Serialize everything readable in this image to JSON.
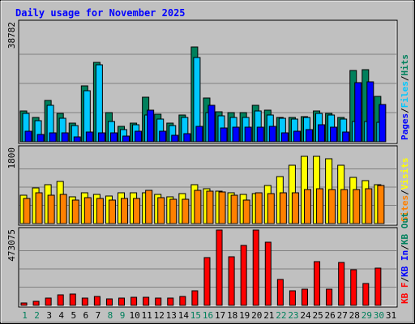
{
  "chart_data": [
    {
      "type": "bar",
      "title": "Daily usage for November 2025",
      "categories": [
        "1",
        "2",
        "3",
        "4",
        "5",
        "6",
        "7",
        "8",
        "9",
        "10",
        "11",
        "12",
        "13",
        "14",
        "15",
        "16",
        "17",
        "18",
        "19",
        "20",
        "21",
        "22",
        "23",
        "24",
        "25",
        "26",
        "27",
        "28",
        "29",
        "30",
        "31"
      ],
      "weekend_days": [
        "1",
        "2",
        "8",
        "9",
        "15",
        "16",
        "22",
        "23",
        "29",
        "30"
      ],
      "ylim": [
        0,
        38782
      ],
      "ytick_label": "38782",
      "legend": [
        "Pages",
        "/",
        "Files",
        "/",
        "Hits"
      ],
      "series": [
        {
          "name": "Hits",
          "color": "#00805c",
          "values": [
            10200,
            8100,
            13800,
            9300,
            6200,
            18500,
            26500,
            9800,
            5000,
            6200,
            14800,
            9200,
            6100,
            9000,
            31500,
            14500,
            10000,
            9600,
            9800,
            12000,
            10500,
            8200,
            8000,
            8400,
            10100,
            9500,
            8100,
            23800,
            24000,
            15000,
            0
          ]
        },
        {
          "name": "Files",
          "color": "#00c8ff",
          "values": [
            9300,
            7000,
            12000,
            7700,
            5500,
            17100,
            25500,
            6600,
            4100,
            5700,
            9000,
            7500,
            5300,
            8000,
            28000,
            9600,
            8700,
            8200,
            8000,
            10300,
            8900,
            7800,
            7500,
            8000,
            9300,
            8800,
            7500,
            6600,
            6600,
            6500,
            0
          ]
        },
        {
          "name": "Pages",
          "color": "#0000ff",
          "values": [
            3600,
            2400,
            3000,
            2900,
            1700,
            3300,
            3000,
            3000,
            1800,
            3500,
            10400,
            3600,
            2200,
            2700,
            5000,
            12200,
            4700,
            4900,
            4900,
            4800,
            5000,
            3000,
            3400,
            4100,
            5600,
            4800,
            3300,
            19600,
            19800,
            12300,
            0
          ]
        }
      ]
    },
    {
      "type": "bar",
      "ylim": [
        0,
        1800
      ],
      "ytick_label": "1800",
      "legend": [
        "Sites",
        "/",
        "Visits"
      ],
      "series": [
        {
          "name": "Visits",
          "color": "#ffff00",
          "values": [
            690,
            880,
            950,
            1040,
            650,
            750,
            710,
            670,
            750,
            750,
            760,
            720,
            660,
            730,
            960,
            850,
            790,
            750,
            720,
            730,
            930,
            1160,
            1430,
            1660,
            1660,
            1590,
            1430,
            1140,
            1060,
            960,
            0
          ]
        },
        {
          "name": "Sites",
          "color": "#ff8000",
          "values": [
            610,
            750,
            690,
            720,
            570,
            630,
            610,
            580,
            610,
            610,
            820,
            630,
            590,
            590,
            810,
            800,
            770,
            690,
            580,
            750,
            730,
            750,
            760,
            840,
            860,
            830,
            830,
            840,
            850,
            930,
            0
          ]
        }
      ]
    },
    {
      "type": "bar",
      "ylim": [
        0,
        473075
      ],
      "ytick_label": "473075",
      "legend": [
        "KB F",
        "/",
        "KB In",
        "/",
        "KB Out"
      ],
      "series": [
        {
          "name": "KB F",
          "color": "#ff0000",
          "values": [
            18000,
            24000,
            48000,
            66000,
            76000,
            48000,
            56000,
            40000,
            48000,
            54000,
            54000,
            48000,
            48000,
            56000,
            96000,
            310000,
            490000,
            315000,
            390000,
            490000,
            410000,
            170000,
            96000,
            104000,
            284000,
            104000,
            280000,
            230000,
            140000,
            244000,
            0
          ]
        }
      ]
    }
  ],
  "legend_colors": {
    "Pages": "#0000ff",
    "/": "#000000",
    "Files": "#00c8ff",
    "Hits": "#00805c",
    "Sites": "#ff8000",
    "Visits": "#ffff00",
    "KB F": "#ff0000",
    "KB In": "#0000ff",
    "KB Out": "#00805c"
  },
  "title_color": "#0000ff",
  "weekday_label_color": "#000000",
  "weekend_label_color": "#00805c"
}
